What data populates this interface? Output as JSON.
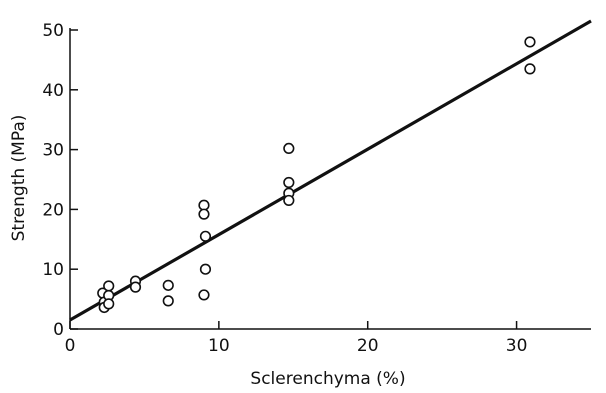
{
  "chart_data": {
    "type": "scatter",
    "title": "",
    "xlabel": "Sclerenchyma (%)",
    "ylabel": "Strength (MPa)",
    "xlim": [
      0,
      35
    ],
    "ylim": [
      0,
      50
    ],
    "xticks": [
      0,
      10,
      20,
      30
    ],
    "yticks": [
      0,
      10,
      20,
      30,
      40,
      50
    ],
    "tick_labels_x": [
      "0",
      "10",
      "20",
      "30"
    ],
    "tick_labels_y": [
      "0",
      "10",
      "20",
      "30",
      "40",
      "50"
    ],
    "grid": false,
    "legend": "none",
    "marker": "open-circle",
    "colors": {
      "ink": "#111111",
      "background": "#ffffff"
    },
    "points": [
      {
        "x": 2.2,
        "y": 6.0
      },
      {
        "x": 2.3,
        "y": 4.5
      },
      {
        "x": 2.3,
        "y": 3.6
      },
      {
        "x": 2.6,
        "y": 7.2
      },
      {
        "x": 2.6,
        "y": 5.6
      },
      {
        "x": 2.6,
        "y": 4.2
      },
      {
        "x": 4.4,
        "y": 8.0
      },
      {
        "x": 4.4,
        "y": 7.0
      },
      {
        "x": 6.6,
        "y": 7.3
      },
      {
        "x": 6.6,
        "y": 4.7
      },
      {
        "x": 9.0,
        "y": 20.7
      },
      {
        "x": 9.0,
        "y": 19.2
      },
      {
        "x": 9.1,
        "y": 15.5
      },
      {
        "x": 9.1,
        "y": 10.0
      },
      {
        "x": 9.0,
        "y": 5.7
      },
      {
        "x": 14.7,
        "y": 30.2
      },
      {
        "x": 14.7,
        "y": 24.5
      },
      {
        "x": 14.7,
        "y": 22.7
      },
      {
        "x": 14.7,
        "y": 21.5
      },
      {
        "x": 30.9,
        "y": 48.0
      },
      {
        "x": 30.9,
        "y": 43.5
      }
    ],
    "fit_line": {
      "x": [
        0,
        35
      ],
      "y": [
        1.5,
        51.5
      ]
    }
  }
}
